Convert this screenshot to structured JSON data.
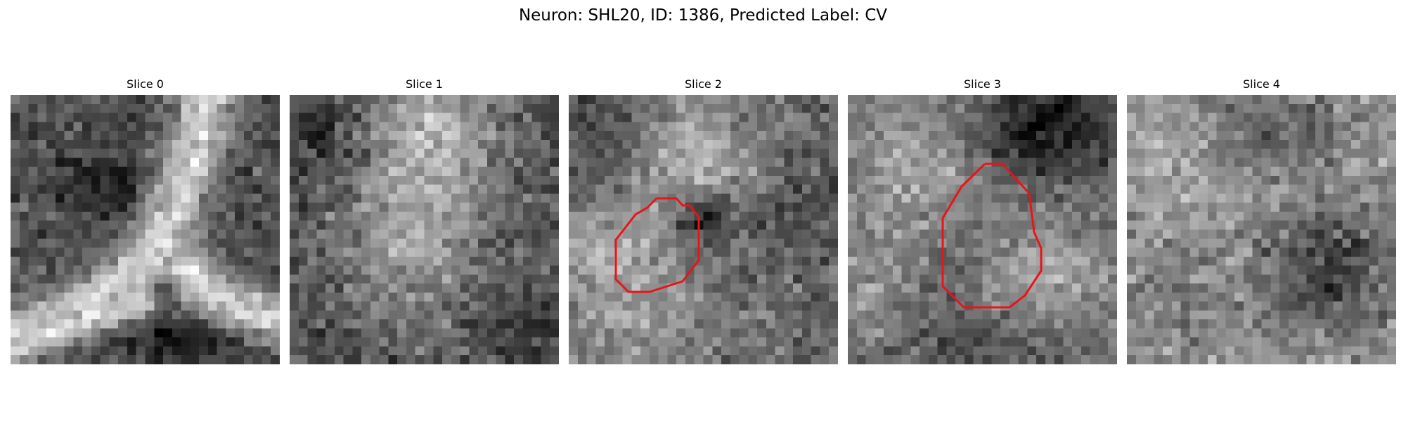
{
  "figure": {
    "title": "Neuron: SHL20, ID: 1386, Predicted Label: CV"
  },
  "panels": [
    {
      "title": "Slice 0",
      "has_contour": false
    },
    {
      "title": "Slice 1",
      "has_contour": false
    },
    {
      "title": "Slice 2",
      "has_contour": true
    },
    {
      "title": "Slice 3",
      "has_contour": true
    },
    {
      "title": "Slice 4",
      "has_contour": false
    }
  ],
  "colors": {
    "contour": "#e8141b",
    "colormap": "grayscale"
  }
}
